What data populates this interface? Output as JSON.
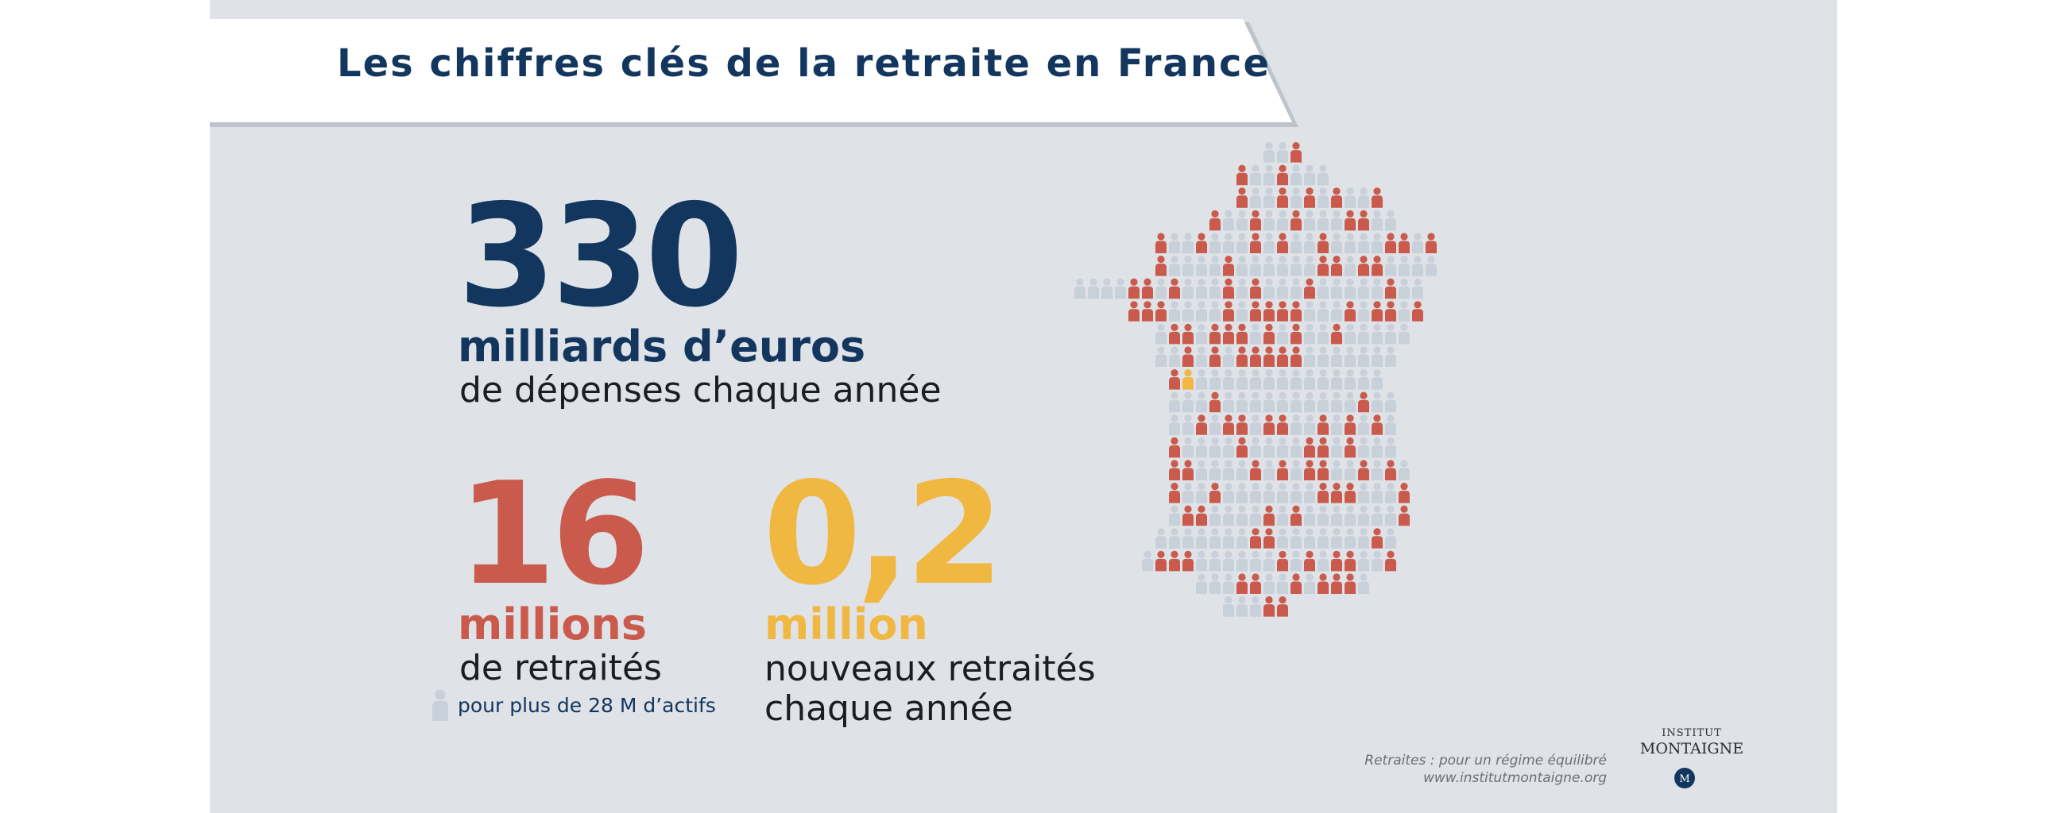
{
  "title": "Les chiffres clés de la retraite en France",
  "stat_spending": {
    "number": "330",
    "unit": "milliards d’euros",
    "description": "de dépenses chaque année"
  },
  "stat_retirees": {
    "number": "16",
    "unit": "millions",
    "description": "de retraités",
    "note": "pour plus de 28 M d’actifs"
  },
  "stat_new_retirees": {
    "number": "0,2",
    "unit": "million",
    "description_line1": "nouveaux retraités",
    "description_line2": "chaque année"
  },
  "source": {
    "line1": "Retraites : pour un régime équilibré",
    "line2": "www.institutmontaigne.org"
  },
  "logo": {
    "top": "INSTITUT",
    "main": "MONTAIGNE",
    "seal": "M"
  },
  "map": {
    "icon": "person-icon",
    "colors": {
      "active": "#c8d0da",
      "retired": "#c95a4c",
      "new_retired": "#f0b840"
    }
  },
  "colors": {
    "navy": "#12365e",
    "red": "#c95a4c",
    "yellow": "#f0b840",
    "background": "#dfe2e7"
  }
}
